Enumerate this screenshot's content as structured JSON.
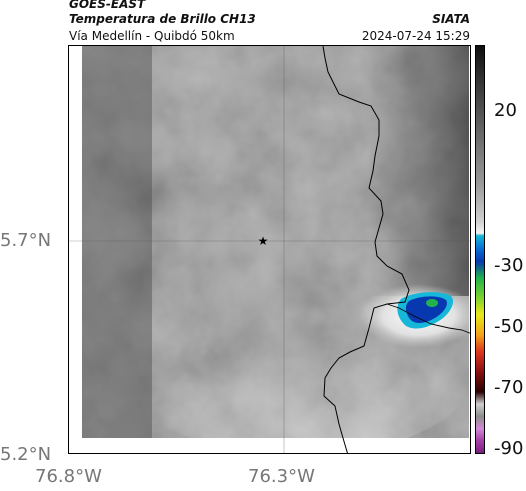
{
  "header": {
    "title": "GOES-EAST",
    "subtitle": "Temperatura de Brillo CH13",
    "agency": "SIATA",
    "region": "Vía Medellín - Quibdó 50km",
    "datetime": "2024-07-24 15:29"
  },
  "axes": {
    "lat_labels": [
      "5.7°N",
      "5.2°N"
    ],
    "lon_labels": [
      "76.8°W",
      "76.3°W"
    ]
  },
  "colorbar": {
    "tick_labels": [
      "20",
      "-30",
      "-50",
      "-70",
      "-90"
    ]
  },
  "colors": {
    "cold_core": "#0838b0",
    "cold_edge": "#16b7d8",
    "anvil": "#f2f2f2",
    "background_cloud": "#8a8a8a",
    "clear_sky": "#4a4a4a"
  },
  "map": {
    "marker_icon": "star-icon"
  }
}
